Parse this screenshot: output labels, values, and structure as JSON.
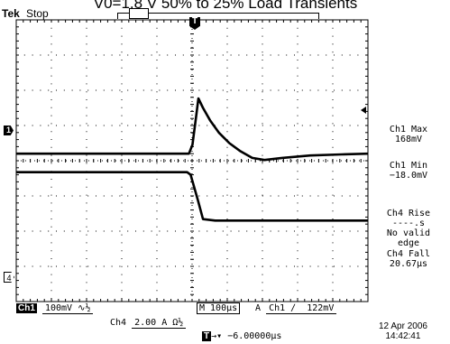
{
  "header": {
    "title": "V0=1.8 V 50% to 25% Load Transients",
    "brand": "Tek",
    "acq_state": "Stop"
  },
  "markers": {
    "ch1": "1",
    "ch4": "4",
    "trigger": "T"
  },
  "measurements": [
    {
      "label": "Ch1 Max",
      "value": "168mV"
    },
    {
      "label": "Ch1 Min",
      "value": "−18.0mV"
    },
    {
      "label": "Ch4 Rise",
      "value": "----.s",
      "note1": "No valid",
      "note2": "edge"
    },
    {
      "label": "Ch4 Fall",
      "value": "20.67µs"
    }
  ],
  "settings": {
    "ch1_label": "Ch1",
    "ch1_scale": "100mV",
    "ch1_coupling": " ∿½",
    "ch4_label": "Ch4",
    "ch4_scale": "2.00 A",
    "ch4_coupling": "Ω½",
    "timebase": "M 100µs",
    "trig_mode": "A",
    "trig_source": "Ch1",
    "trig_slope": "∕",
    "trig_level": "122mV",
    "trig_position": "−6.00000µs",
    "date": "12 Apr  2006",
    "time": "14:42:41"
  },
  "chart_data": {
    "type": "line",
    "title": "V0=1.8 V 50% to 25% Load Transients",
    "xlabel": "",
    "ylabel": "",
    "x_unit": "µs",
    "xlim": [
      -506,
      494
    ],
    "grid": true,
    "series": [
      {
        "channel": "Ch1",
        "unit": "mV",
        "ylim": [
          -420,
          380
        ],
        "points": [
          [
            -506,
            0
          ],
          [
            -15,
            0
          ],
          [
            -5,
            25
          ],
          [
            6,
            110
          ],
          [
            12,
            157
          ],
          [
            25,
            130
          ],
          [
            45,
            95
          ],
          [
            70,
            60
          ],
          [
            100,
            30
          ],
          [
            130,
            8
          ],
          [
            165,
            -12
          ],
          [
            200,
            -18
          ],
          [
            250,
            -12
          ],
          [
            330,
            -5
          ],
          [
            420,
            -2
          ],
          [
            494,
            0
          ]
        ]
      },
      {
        "channel": "Ch4",
        "unit": "A",
        "ylim": [
          -8.4,
          7.6
        ],
        "points": [
          [
            -506,
            -1.05
          ],
          [
            -20,
            -1.05
          ],
          [
            -10,
            -1.2
          ],
          [
            10,
            -2.6
          ],
          [
            25,
            -3.72
          ],
          [
            60,
            -3.8
          ],
          [
            494,
            -3.8
          ]
        ]
      }
    ]
  }
}
